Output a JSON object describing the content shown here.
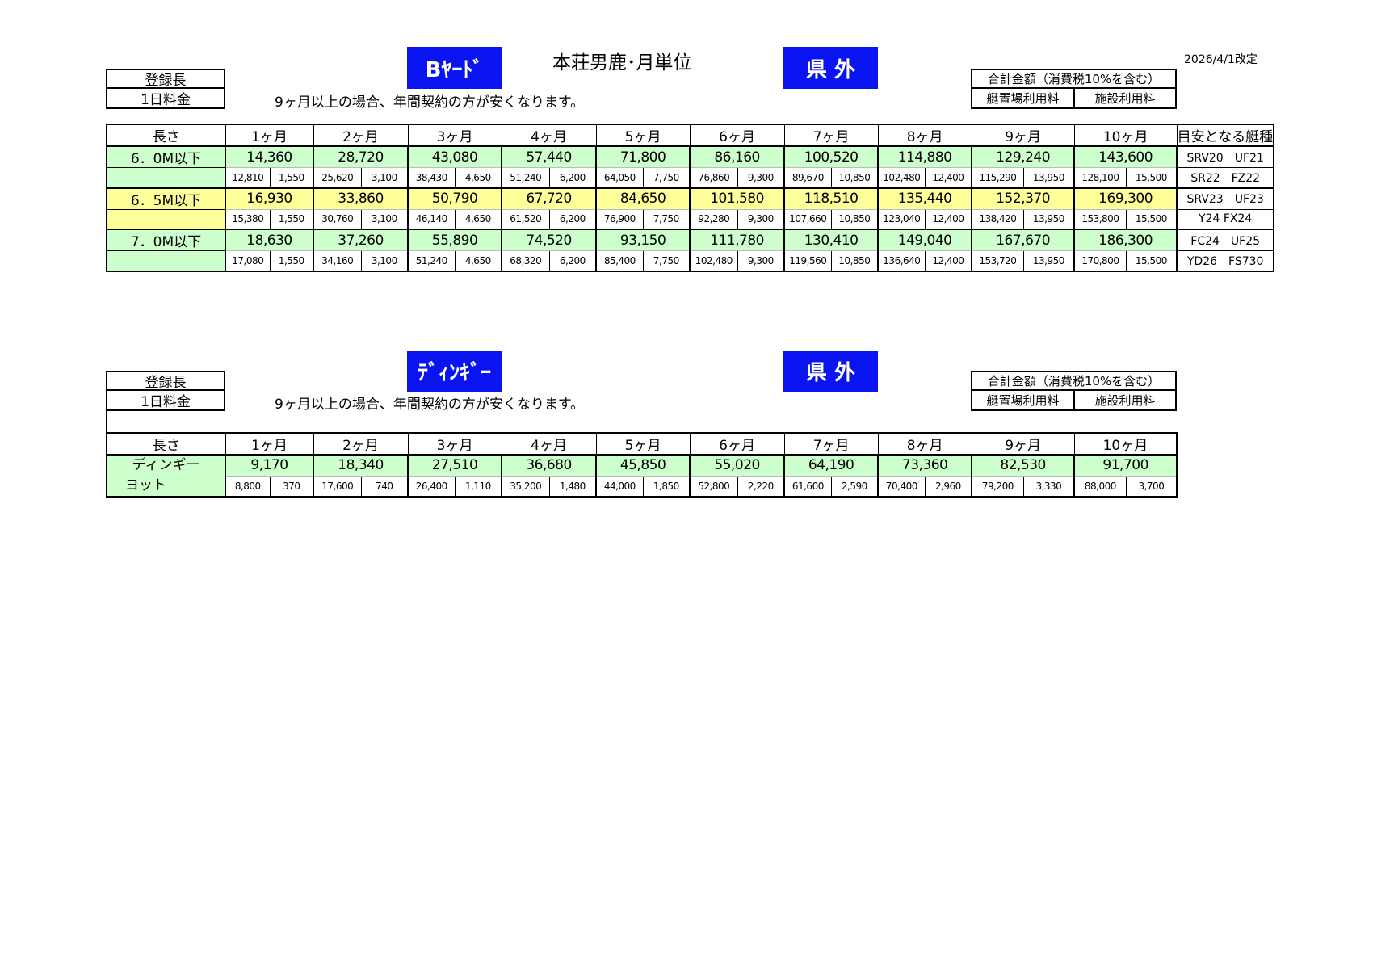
{
  "colors": {
    "accent_blue": "#0a14f0",
    "row_green": "#ccffcc",
    "row_yellow": "#ffff99"
  },
  "header": {
    "title": "本荘男鹿･月単位",
    "revision_date": "2026/4/1改定"
  },
  "legend": {
    "registered_length": "登録長",
    "daily_fee": "1日料金",
    "total_label": "合計金額（消費税10%を含む）",
    "mooring_fee": "艇置場利用料",
    "facility_fee": "施設利用料"
  },
  "note": "9ヶ月以上の場合、年間契約の方が安くなります。",
  "section1": {
    "category_badge": "Bﾔｰﾄﾞ",
    "region_badge": "県 外",
    "headers": {
      "length": "長さ",
      "months": [
        "1ヶ月",
        "2ヶ月",
        "3ヶ月",
        "4ヶ月",
        "5ヶ月",
        "6ヶ月",
        "7ヶ月",
        "8ヶ月",
        "9ヶ月",
        "10ヶ月"
      ],
      "model": "目安となる艇種"
    },
    "rows": [
      {
        "length": "6．0M以下",
        "color": "green",
        "totals": [
          "14,360",
          "28,720",
          "43,080",
          "57,440",
          "71,800",
          "86,160",
          "100,520",
          "114,880",
          "129,240",
          "143,600"
        ],
        "mooring": [
          "12,810",
          "25,620",
          "38,430",
          "51,240",
          "64,050",
          "76,860",
          "89,670",
          "102,480",
          "115,290",
          "128,100"
        ],
        "facility": [
          "1,550",
          "3,100",
          "4,650",
          "6,200",
          "7,750",
          "9,300",
          "10,850",
          "12,400",
          "13,950",
          "15,500"
        ],
        "models": [
          "SRV20　UF21",
          "SR22　FZ22"
        ]
      },
      {
        "length": "6．5M以下",
        "color": "yellow",
        "totals": [
          "16,930",
          "33,860",
          "50,790",
          "67,720",
          "84,650",
          "101,580",
          "118,510",
          "135,440",
          "152,370",
          "169,300"
        ],
        "mooring": [
          "15,380",
          "30,760",
          "46,140",
          "61,520",
          "76,900",
          "92,280",
          "107,660",
          "123,040",
          "138,420",
          "153,800"
        ],
        "facility": [
          "1,550",
          "3,100",
          "4,650",
          "6,200",
          "7,750",
          "9,300",
          "10,850",
          "12,400",
          "13,950",
          "15,500"
        ],
        "models": [
          "SRV23　UF23",
          "Y24 FX24"
        ]
      },
      {
        "length": "7．0M以下",
        "color": "green",
        "totals": [
          "18,630",
          "37,260",
          "55,890",
          "74,520",
          "93,150",
          "111,780",
          "130,410",
          "149,040",
          "167,670",
          "186,300"
        ],
        "mooring": [
          "17,080",
          "34,160",
          "51,240",
          "68,320",
          "85,400",
          "102,480",
          "119,560",
          "136,640",
          "153,720",
          "170,800"
        ],
        "facility": [
          "1,550",
          "3,100",
          "4,650",
          "6,200",
          "7,750",
          "9,300",
          "10,850",
          "12,400",
          "13,950",
          "15,500"
        ],
        "models": [
          "FC24　UF25",
          "YD26　FS730"
        ]
      }
    ]
  },
  "section2": {
    "category_badge": "ﾃﾞｨﾝｷﾞｰ",
    "region_badge": "県 外",
    "headers": {
      "length": "長さ",
      "months": [
        "1ヶ月",
        "2ヶ月",
        "3ヶ月",
        "4ヶ月",
        "5ヶ月",
        "6ヶ月",
        "7ヶ月",
        "8ヶ月",
        "9ヶ月",
        "10ヶ月"
      ]
    },
    "rows": [
      {
        "length": [
          "ディンギー",
          "ヨット"
        ],
        "color": "green",
        "totals": [
          "9,170",
          "18,340",
          "27,510",
          "36,680",
          "45,850",
          "55,020",
          "64,190",
          "73,360",
          "82,530",
          "91,700"
        ],
        "mooring": [
          "8,800",
          "17,600",
          "26,400",
          "35,200",
          "44,000",
          "52,800",
          "61,600",
          "70,400",
          "79,200",
          "88,000"
        ],
        "facility": [
          "370",
          "740",
          "1,110",
          "1,480",
          "1,850",
          "2,220",
          "2,590",
          "2,960",
          "3,330",
          "3,700"
        ]
      }
    ]
  }
}
